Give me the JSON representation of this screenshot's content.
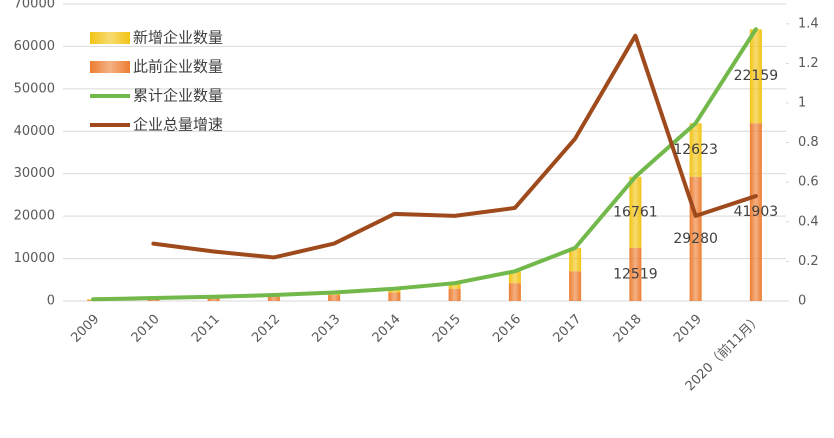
{
  "chart_data": {
    "type": "bar-line",
    "categories": [
      "2009",
      "2010",
      "2011",
      "2012",
      "2013",
      "2014",
      "2015",
      "2016",
      "2017",
      "2018",
      "2019",
      "2020（前11月）"
    ],
    "series": [
      {
        "name": "新增企业数量",
        "type": "bar",
        "color": "#f2c314",
        "values": [
          200,
          300,
          300,
          400,
          600,
          900,
          1300,
          2800,
          5519,
          16761,
          12623,
          22159
        ],
        "value_labels": [
          null,
          null,
          null,
          null,
          null,
          null,
          null,
          null,
          null,
          "16761",
          "12623",
          "22159"
        ]
      },
      {
        "name": "此前企业数量",
        "type": "bar",
        "color": "#ed7d31",
        "values": [
          200,
          400,
          700,
          1000,
          1400,
          2000,
          2900,
          4200,
          7000,
          12519,
          29280,
          41903
        ],
        "value_labels": [
          null,
          null,
          null,
          null,
          null,
          null,
          null,
          null,
          null,
          "12519",
          "29280",
          "41903"
        ]
      },
      {
        "name": "累计企业数量",
        "type": "line",
        "color": "#72b84a",
        "values": [
          400,
          700,
          1000,
          1400,
          2000,
          2900,
          4200,
          7000,
          12519,
          29280,
          41903,
          64062
        ]
      },
      {
        "name": "企业总量增速",
        "type": "line",
        "axis": "y2",
        "color": "#9e4a1c",
        "values": [
          null,
          0.29,
          0.25,
          0.22,
          0.29,
          0.44,
          0.43,
          0.47,
          0.82,
          1.34,
          0.43,
          0.53
        ]
      }
    ],
    "ylim": [
      0,
      70000
    ],
    "yticks": [
      0,
      10000,
      20000,
      30000,
      40000,
      50000,
      60000,
      70000
    ],
    "y2lim": [
      0,
      1.5
    ],
    "y2ticks": [
      0,
      0.2,
      0.4,
      0.6,
      0.8,
      1,
      1.2,
      1.4
    ],
    "grid": true,
    "legend": "upper-left"
  }
}
